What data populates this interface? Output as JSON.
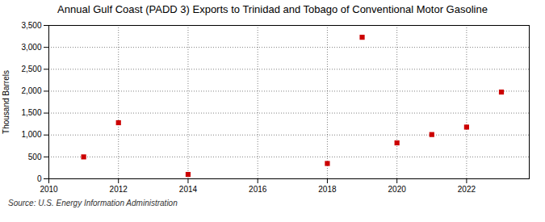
{
  "chart_data": {
    "type": "scatter",
    "title": "Annual Gulf Coast (PADD 3) Exports to Trinidad and Tobago of Conventional Motor Gasoline",
    "ylabel": "Thousand Barrels",
    "annotations": [
      "Source: U.S. Energy Information Administration"
    ],
    "x": [
      2011,
      2012,
      2014,
      2018,
      2019,
      2020,
      2021,
      2022,
      2023
    ],
    "values": [
      500,
      1280,
      100,
      350,
      3230,
      820,
      1010,
      1180,
      1980
    ],
    "color": "#cc0000",
    "marker": "square",
    "xlim": [
      2010,
      2023.8
    ],
    "ylim": [
      0,
      3500
    ],
    "xticks": [
      2010,
      2012,
      2014,
      2016,
      2018,
      2020,
      2022
    ],
    "yticks": [
      0,
      500,
      {
        "value": 1000,
        "label": "1,000"
      },
      {
        "value": 1500,
        "label": "1,500"
      },
      {
        "value": 2000,
        "label": "2,000"
      },
      {
        "value": 2500,
        "label": "2,500"
      },
      {
        "value": 3000,
        "label": "3,000"
      },
      {
        "value": 3500,
        "label": "3,500"
      }
    ],
    "grid": true
  }
}
